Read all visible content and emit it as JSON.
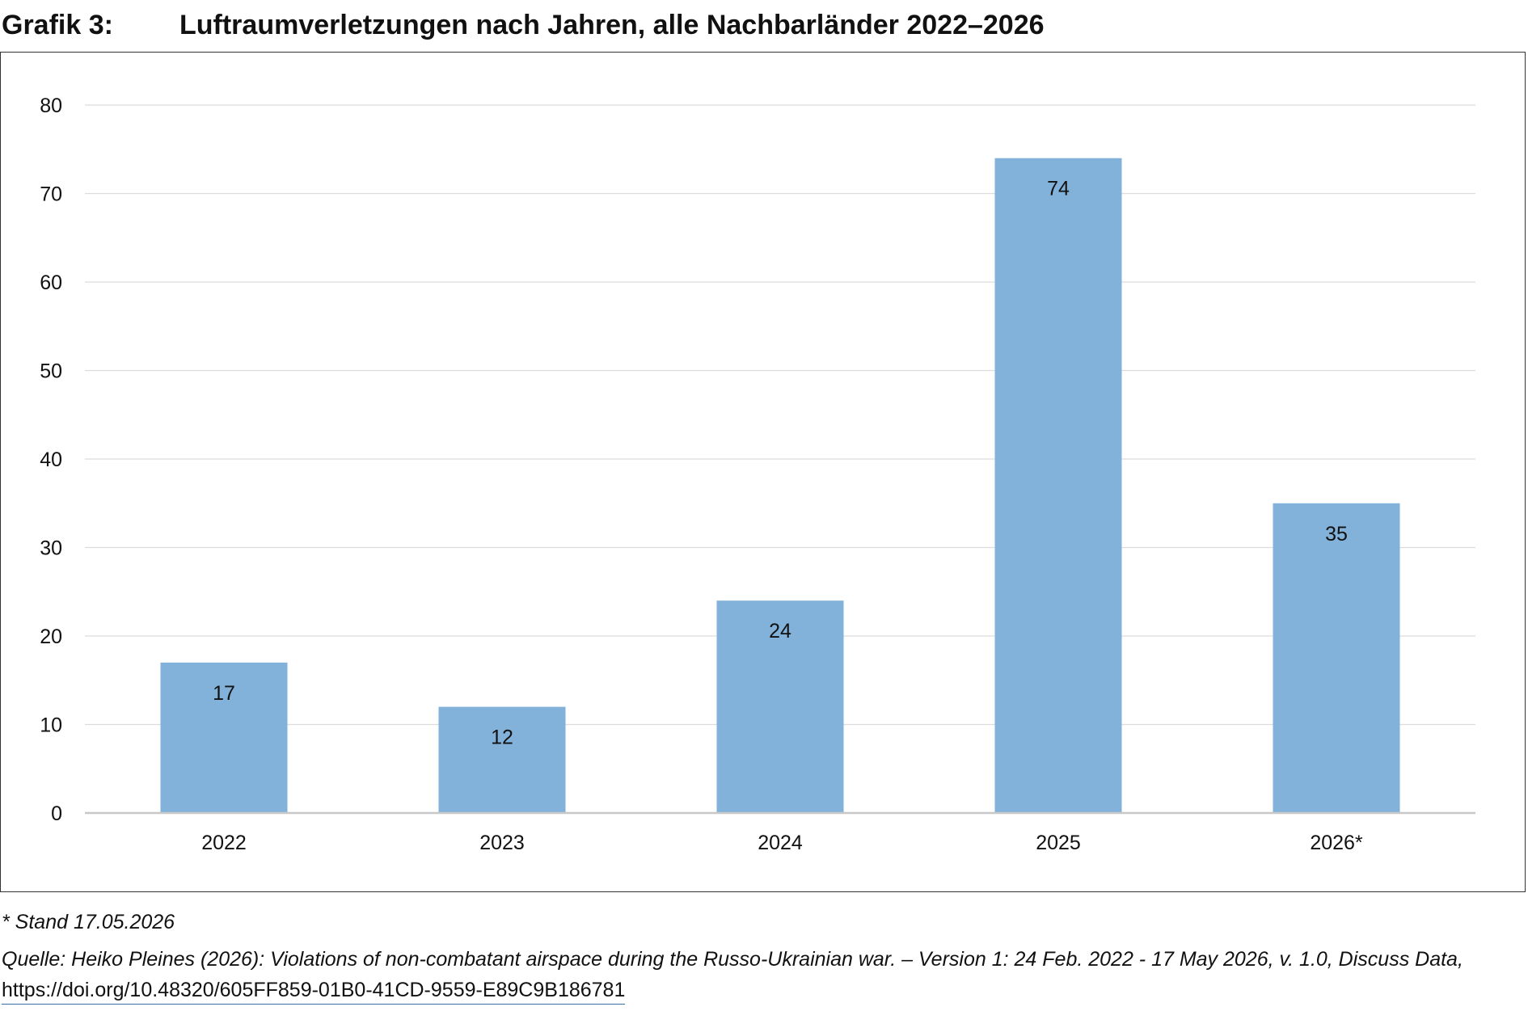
{
  "figure": {
    "label": "Grafik 3:",
    "title": "Luftraumverletzungen nach Jahren, alle Nachbarländer 2022–2026"
  },
  "colors": {
    "bar": "#82b2d9",
    "grid": "#dcdcdc",
    "axis": "#c8c8c8",
    "frame": "#333333",
    "text": "#111111"
  },
  "chart_data": {
    "type": "bar",
    "title": "Luftraumverletzungen nach Jahren, alle Nachbarländer 2022–2026",
    "xlabel": "",
    "ylabel": "",
    "categories": [
      "2022",
      "2023",
      "2024",
      "2025",
      "2026*"
    ],
    "values": [
      17,
      12,
      24,
      74,
      35
    ],
    "data_labels": [
      "17",
      "12",
      "24",
      "74",
      "35"
    ],
    "ylim": [
      0,
      80
    ],
    "yticks": [
      0,
      10,
      20,
      30,
      40,
      50,
      60,
      70,
      80
    ],
    "ytick_labels": [
      "0",
      "10",
      "20",
      "30",
      "40",
      "50",
      "60",
      "70",
      "80"
    ],
    "grid": true,
    "legend": "none"
  },
  "notes": {
    "footnote": "* Stand 17.05.2026",
    "source_text": "Quelle: Heiko Pleines (2026): Violations of non-combatant airspace during the Russo-Ukrainian war. – Version 1: 24 Feb. 2022 - 17 May 2026, v. 1.0, Discuss Data,",
    "source_link": "https://doi.org/10.48320/605FF859-01B0-41CD-9559-E89C9B186781"
  }
}
